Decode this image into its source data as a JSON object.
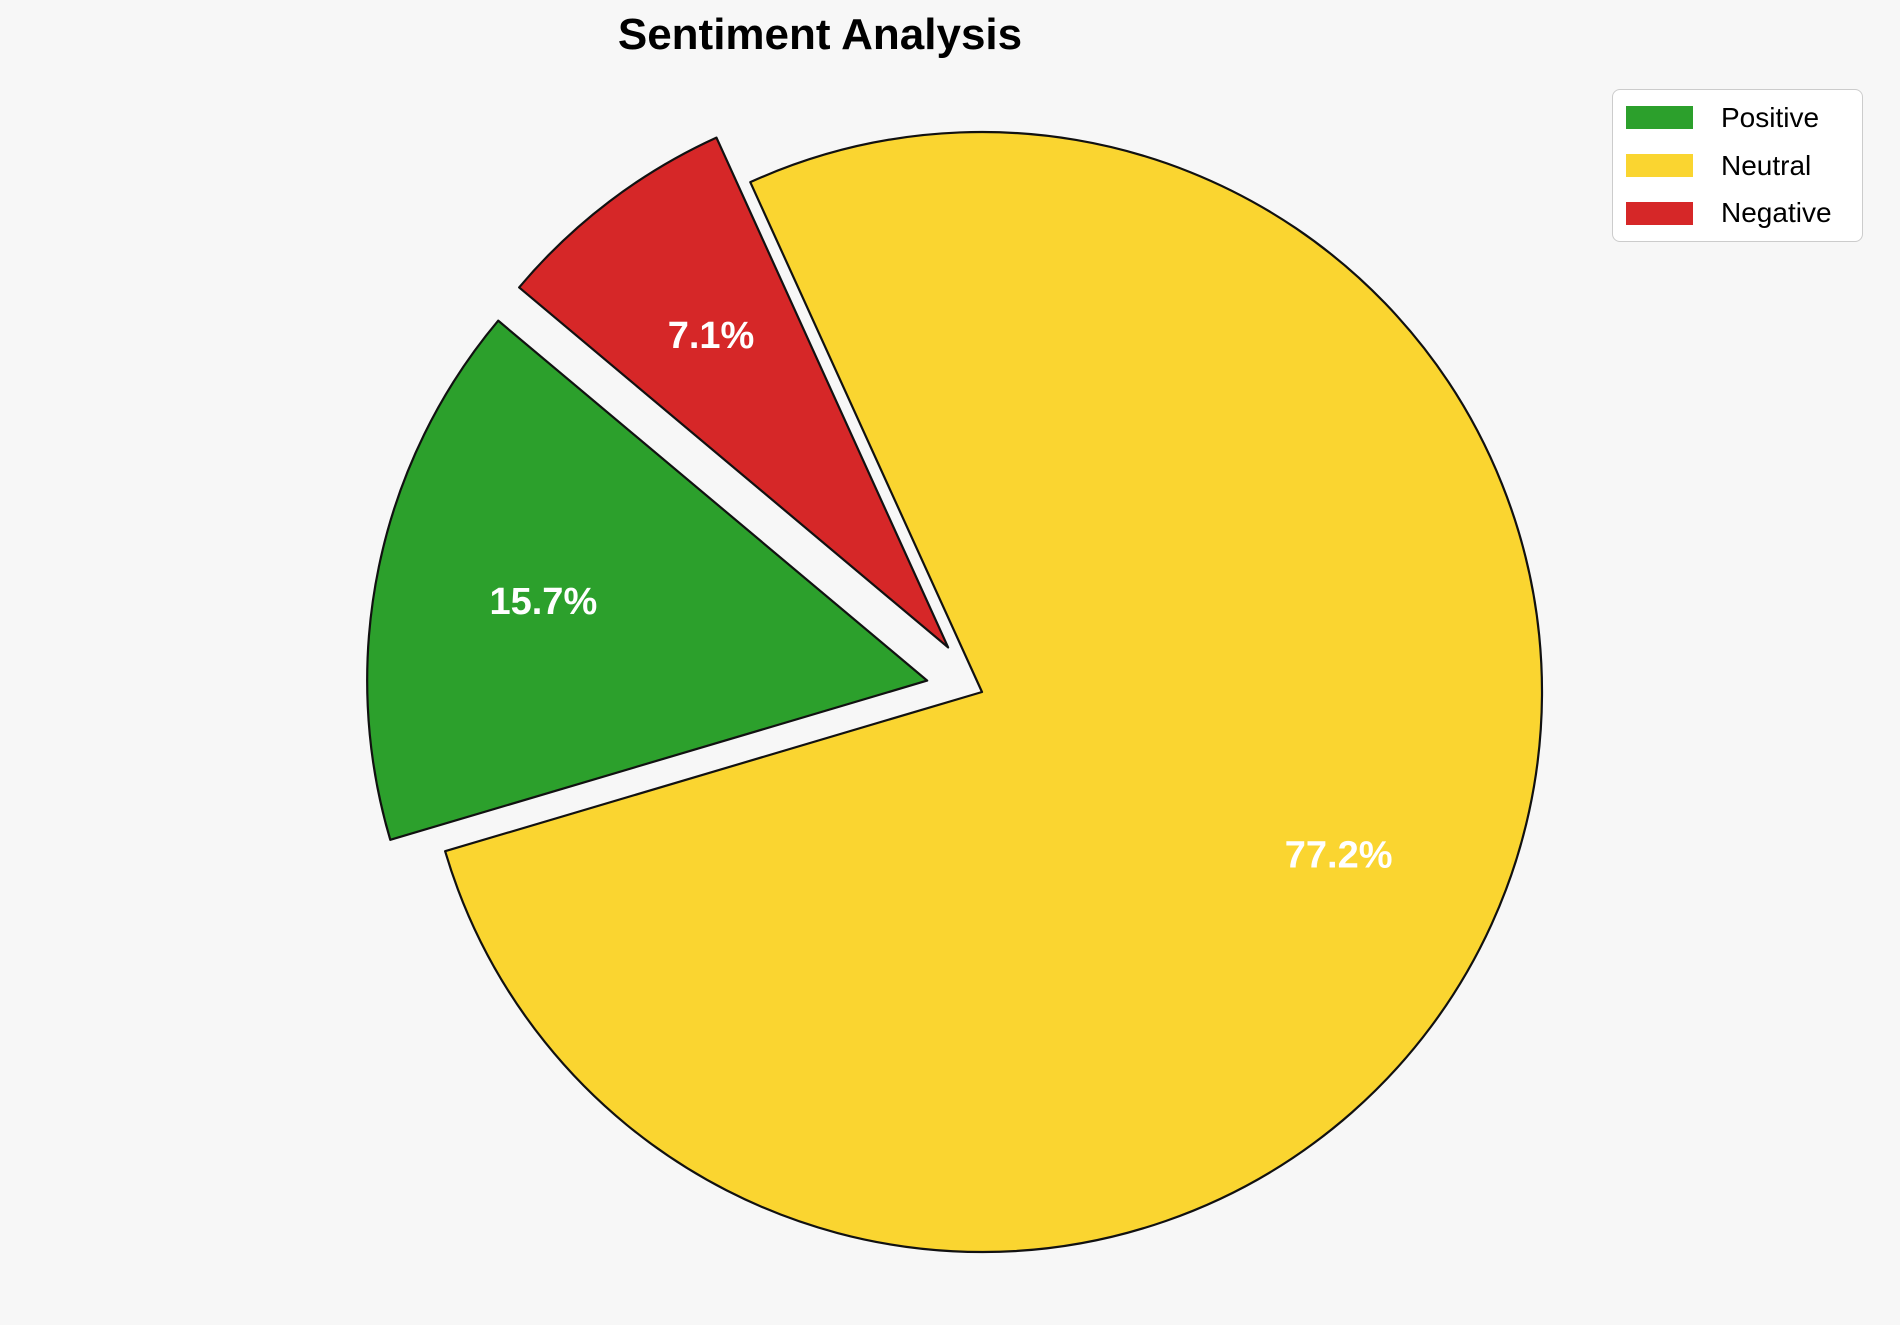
{
  "title": "Sentiment Analysis",
  "chart_data": {
    "type": "pie",
    "title": "Sentiment Analysis",
    "slices": [
      {
        "label": "Positive",
        "value": 15.7,
        "pct_label": "15.7%",
        "color": "#2CA02C",
        "explode": 0.1
      },
      {
        "label": "Neutral",
        "value": 77.2,
        "pct_label": "77.2%",
        "color": "#FAD530",
        "explode": 0
      },
      {
        "label": "Negative",
        "value": 7.1,
        "pct_label": "7.1%",
        "color": "#D62728",
        "explode": 0.1
      }
    ],
    "start_angle_deg": 140,
    "direction": "counterclockwise",
    "edge_color": "#111111",
    "pct_label_color": "#FFFFFF",
    "legend_position": "upper right",
    "legend_entries": [
      "Positive",
      "Neutral",
      "Negative"
    ]
  },
  "colors": {
    "background": "#F7F7F7",
    "legend_background": "#FFFFFF",
    "legend_border": "#CCCCCC"
  }
}
